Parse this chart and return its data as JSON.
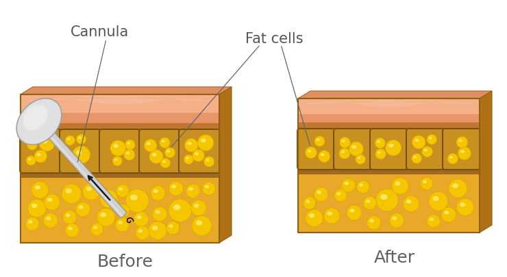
{
  "bg_color": "#ffffff",
  "skin_pink_top": "#f2b08a",
  "skin_pink_mid": "#e8956a",
  "skin_brown_sep": "#c47a3a",
  "tissue_yellow": "#e8a020",
  "tissue_yellow_light": "#f0b030",
  "fat_ball_color": "#f5c500",
  "fat_ball_highlight": "#fff080",
  "fat_ball_shadow": "#d4a000",
  "grid_bg": "#c8900a",
  "grid_border": "#8B5e0a",
  "block_side_dark": "#b07010",
  "block_top_orange": "#d4874a",
  "before_label": "Before",
  "after_label": "After",
  "cannula_label": "Cannula",
  "fat_label": "Fat cells",
  "label_color": "#555555",
  "label_fontsize": 15,
  "before_after_fontsize": 18
}
